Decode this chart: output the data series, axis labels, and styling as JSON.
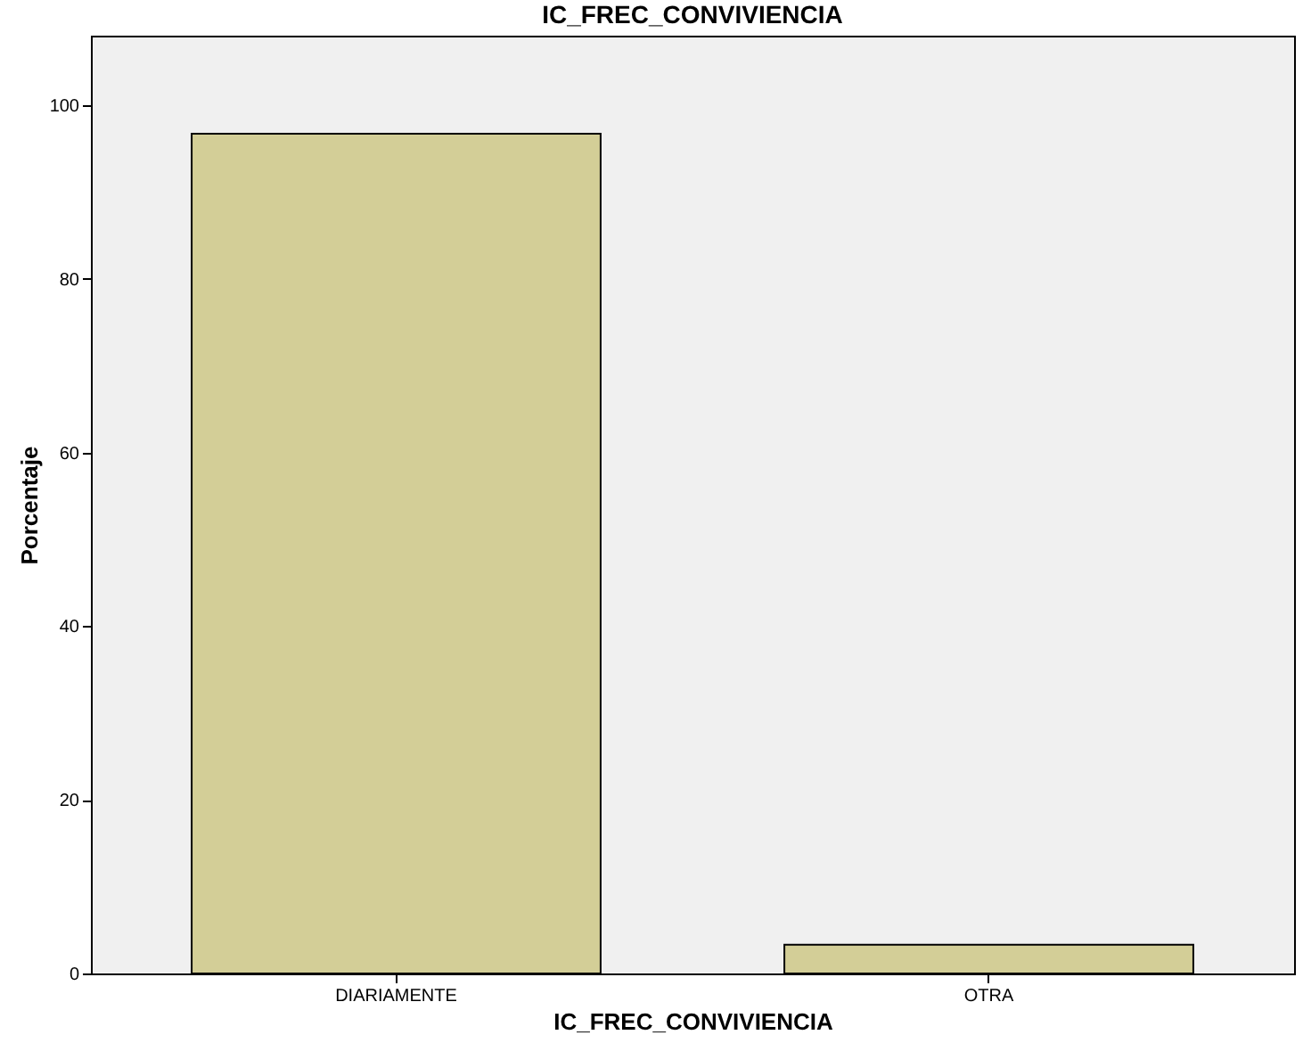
{
  "chart_data": {
    "type": "bar",
    "title": "IC_FREC_CONVIVIENCIA",
    "xlabel": "IC_FREC_CONVIVIENCIA",
    "ylabel": "Porcentaje",
    "categories": [
      "DIARIAMENTE",
      "OTRA"
    ],
    "values": [
      96.7,
      3.3
    ],
    "color": "#d3ce97",
    "ylim": [
      0,
      108
    ],
    "yticks": [
      0,
      20,
      40,
      60,
      80,
      100
    ],
    "grid": false
  }
}
